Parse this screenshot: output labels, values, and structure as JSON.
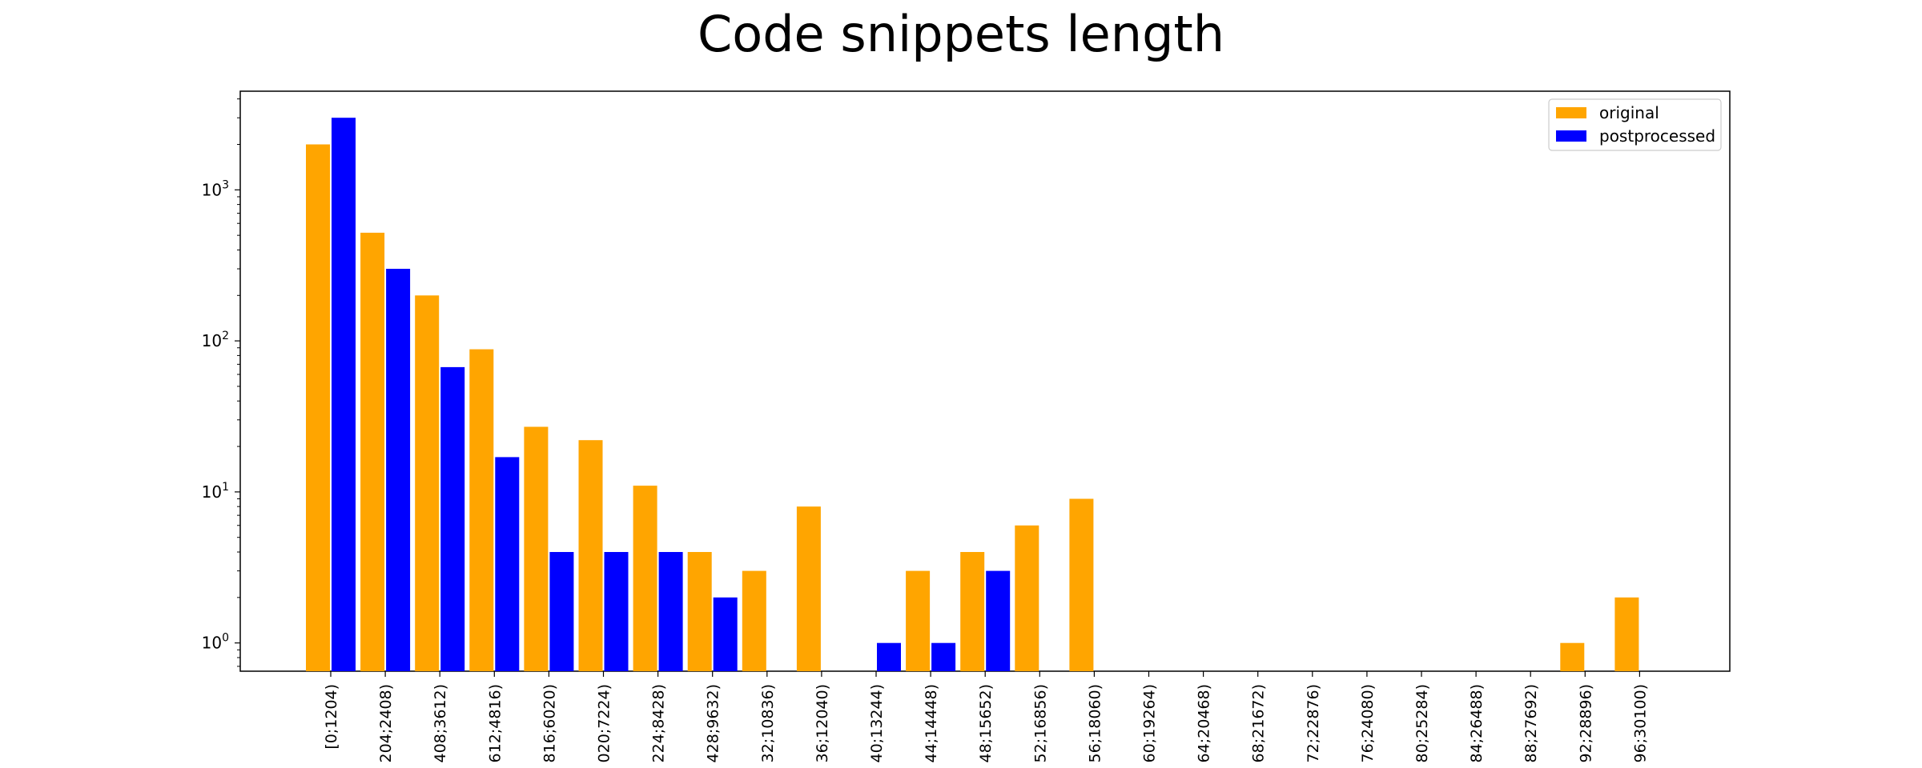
{
  "chart_data": {
    "type": "bar",
    "title": "Code snippets length",
    "xlabel": "",
    "ylabel": "",
    "yscale": "log",
    "ylim": [
      0.65,
      4500
    ],
    "yticks": [
      {
        "value": 1,
        "base": "10",
        "exp": "0"
      },
      {
        "value": 10,
        "base": "10",
        "exp": "1"
      },
      {
        "value": 100,
        "base": "10",
        "exp": "2"
      },
      {
        "value": 1000,
        "base": "10",
        "exp": "3"
      }
    ],
    "grid": false,
    "legend_position": "top-right",
    "categories": [
      "[0;1204)",
      "204;2408)",
      "408;3612)",
      "612;4816)",
      "816;6020)",
      "020;7224)",
      "224;8428)",
      "428;9632)",
      "32;10836)",
      "36;12040)",
      "40;13244)",
      "44;14448)",
      "48;15652)",
      "52;16856)",
      "56;18060)",
      "60;19264)",
      "64;20468)",
      "68;21672)",
      "72;22876)",
      "76;24080)",
      "80;25284)",
      "84;26488)",
      "88;27692)",
      "92;28896)",
      "96;30100)"
    ],
    "series": [
      {
        "name": "original",
        "color": "#ffa500",
        "values": [
          2000,
          520,
          200,
          88,
          27,
          22,
          11,
          4,
          3,
          8,
          0,
          3,
          4,
          6,
          9,
          0,
          0,
          0,
          0,
          0,
          0,
          0,
          0,
          1,
          2
        ],
        "offsets": [
          -1,
          -1,
          -1,
          -1,
          -1,
          -1,
          -1,
          -1,
          -1,
          -1,
          -1,
          -1,
          -1,
          -1,
          -1,
          -1,
          -1,
          -1,
          -1,
          -1,
          -1,
          -1,
          -1,
          -1,
          -1
        ]
      },
      {
        "name": "postprocessed",
        "color": "#0000ff",
        "values": [
          3000,
          300,
          67,
          17,
          4,
          4,
          4,
          2,
          0,
          0,
          1,
          1,
          3,
          0,
          0,
          0,
          0,
          0,
          0,
          0,
          0,
          0,
          0,
          0,
          0
        ],
        "offsets": [
          1,
          1,
          1,
          1,
          1,
          1,
          1,
          1,
          1,
          1,
          1,
          1,
          1,
          1,
          1,
          1,
          1,
          1,
          1,
          1,
          1,
          1,
          1,
          1,
          1
        ]
      }
    ]
  }
}
